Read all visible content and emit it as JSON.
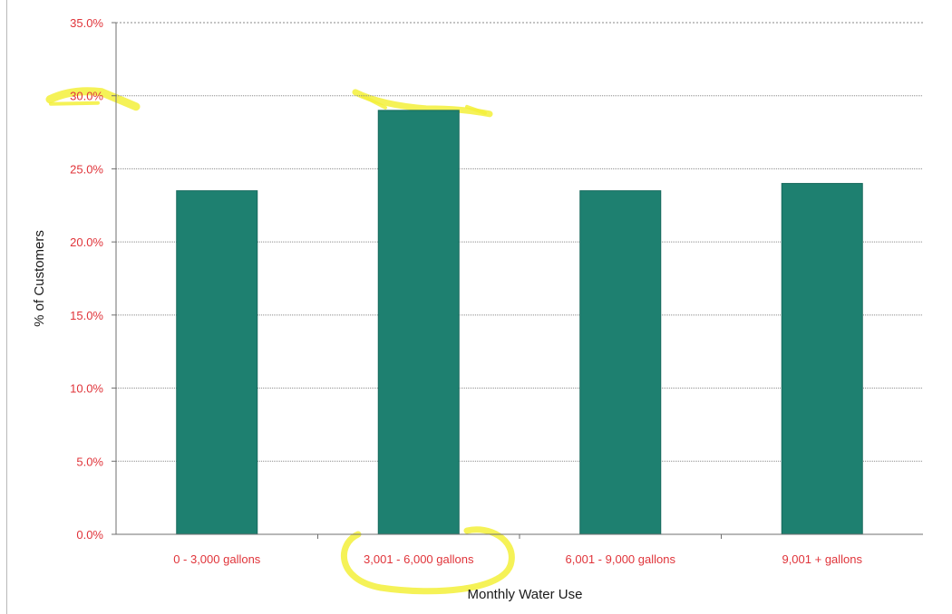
{
  "chart_data": {
    "type": "bar",
    "title": "",
    "xlabel": "Monthly Water Use",
    "ylabel": "% of Customers",
    "categories": [
      "0 - 3,000 gallons",
      "3,001 - 6,000 gallons",
      "6,001 - 9,000 gallons",
      "9,001 + gallons"
    ],
    "series": [
      {
        "values": [
          23.5,
          29.0,
          23.5,
          24.0
        ]
      }
    ],
    "ylim": [
      0,
      35
    ],
    "yticks": [
      "0.0%",
      "5.0%",
      "10.0%",
      "15.0%",
      "20.0%",
      "25.0%",
      "30.0%",
      "35.0%"
    ],
    "grid": true,
    "legend": "none"
  },
  "colors": {
    "bar": "#1e8070",
    "bar_edge": "#16695c",
    "tick_label": "#e0343a",
    "axis_title": "#1a1a1a",
    "grid": "#8a8a8a",
    "axis": "#6f6f6f",
    "highlight": "#f3f03a"
  }
}
